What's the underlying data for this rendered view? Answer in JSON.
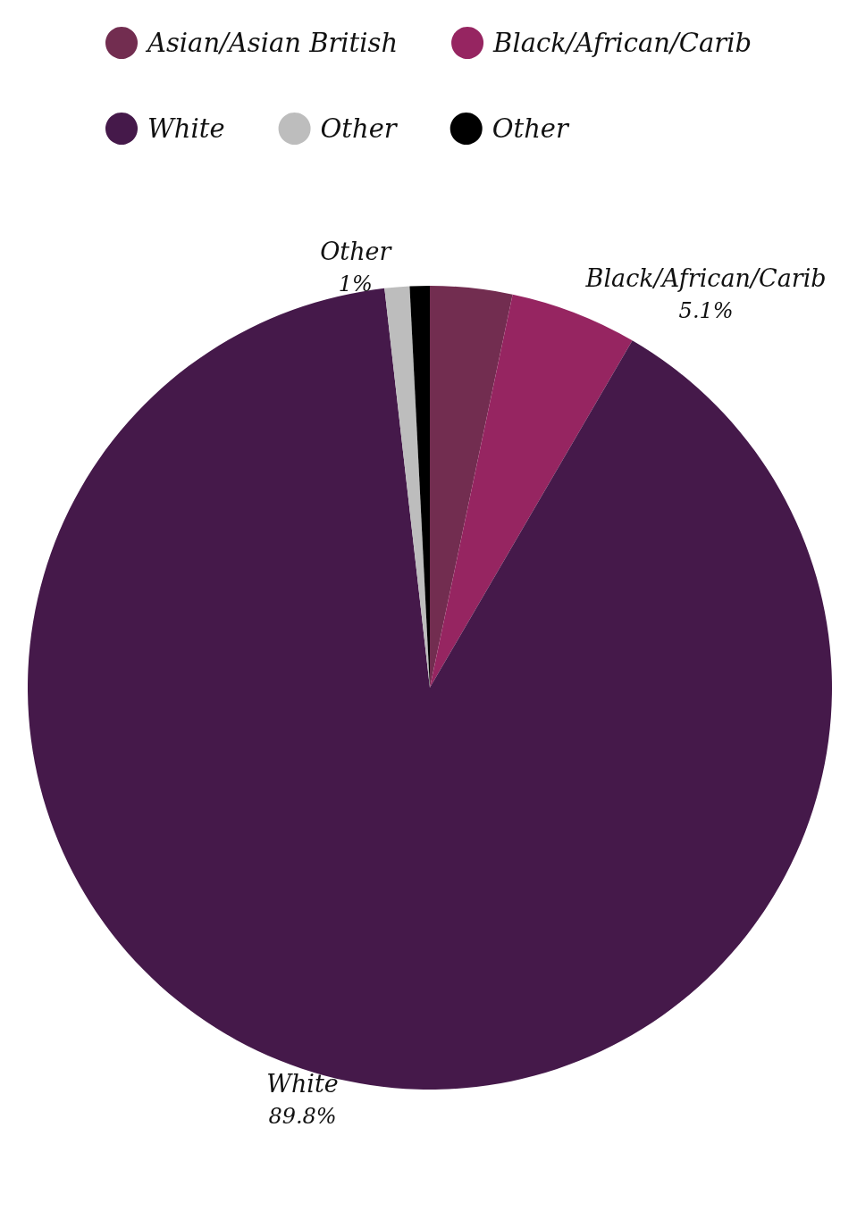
{
  "chart_data": {
    "type": "pie",
    "categories": [
      "Asian/Asian British",
      "Black/African/Carib",
      "White",
      "Other",
      "Other"
    ],
    "values": [
      3.3,
      5.1,
      89.8,
      1,
      0.8
    ],
    "colors": [
      "#722d50",
      "#962561",
      "#45194a",
      "#bdbdbd",
      "#000000"
    ],
    "value_labels": [
      null,
      "5.1%",
      "89.8%",
      "1%",
      null
    ],
    "legend": "top"
  }
}
